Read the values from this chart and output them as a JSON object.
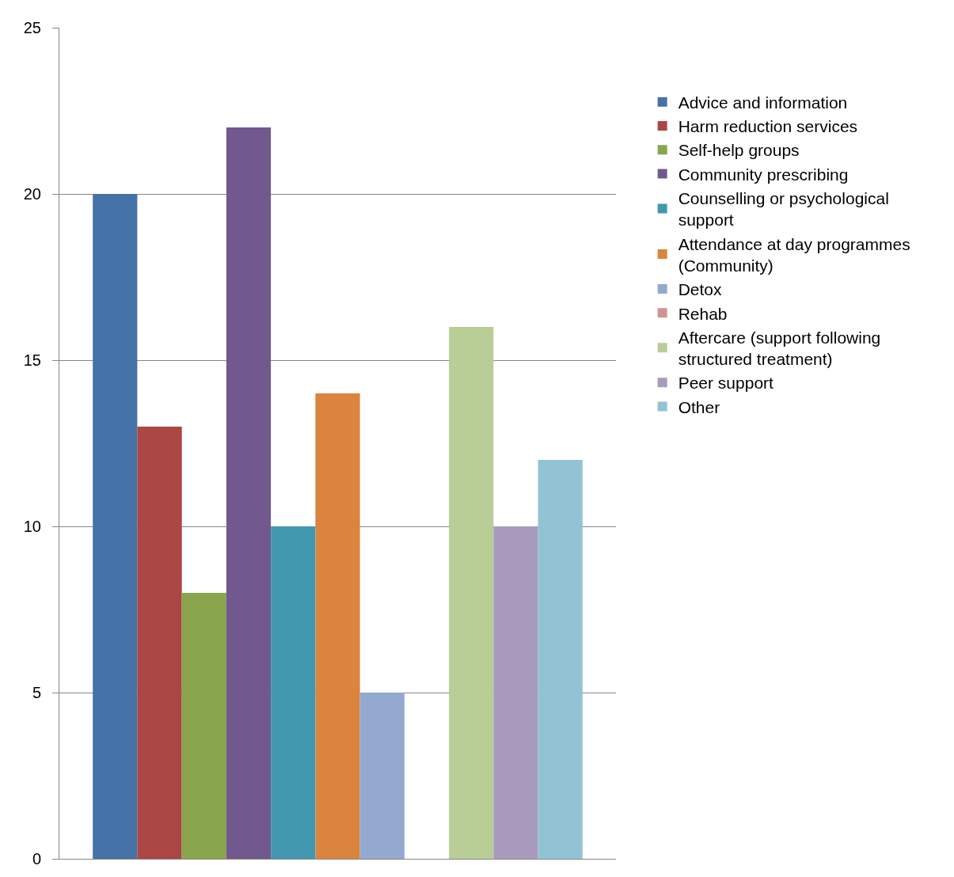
{
  "chart_data": {
    "type": "bar",
    "categories": [
      null
    ],
    "series": [
      {
        "name": "Advice and information",
        "color": "#4572a7",
        "values": [
          20
        ]
      },
      {
        "name": "Harm reduction services",
        "color": "#aa4643",
        "values": [
          13
        ]
      },
      {
        "name": "Self-help groups",
        "color": "#89a54e",
        "values": [
          8
        ]
      },
      {
        "name": "Community prescribing",
        "color": "#71588f",
        "values": [
          22
        ]
      },
      {
        "name": "Counselling or psychological support",
        "color": "#4198af",
        "values": [
          10
        ]
      },
      {
        "name": "Attendance at day programmes (Community)",
        "color": "#db843d",
        "values": [
          14
        ]
      },
      {
        "name": "Detox",
        "color": "#93a9cf",
        "values": [
          5
        ]
      },
      {
        "name": "Rehab",
        "color": "#d19392",
        "values": [
          0
        ]
      },
      {
        "name": "Aftercare (support following structured treatment)",
        "color": "#b9cd96",
        "values": [
          16
        ]
      },
      {
        "name": "Peer support",
        "color": "#a99bbd",
        "values": [
          10
        ]
      },
      {
        "name": "Other",
        "color": "#92c3d4",
        "values": [
          12
        ]
      }
    ],
    "ylim": [
      0,
      25
    ],
    "yticks": [
      0,
      5,
      10,
      15,
      20,
      25
    ],
    "grid": "y",
    "legend": "right"
  }
}
